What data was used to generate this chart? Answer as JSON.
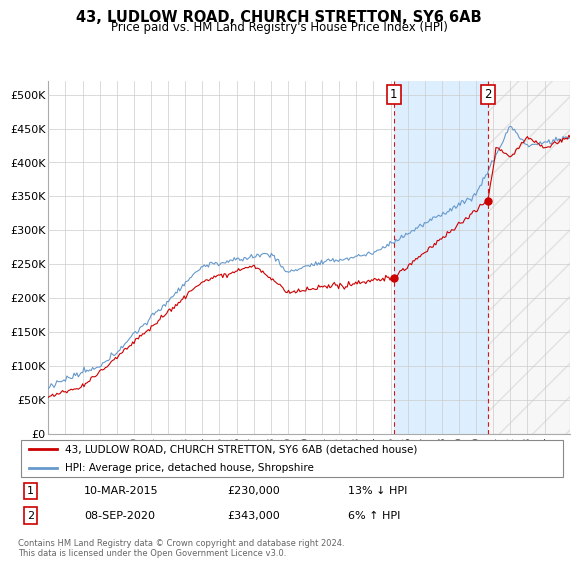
{
  "title": "43, LUDLOW ROAD, CHURCH STRETTON, SY6 6AB",
  "subtitle": "Price paid vs. HM Land Registry's House Price Index (HPI)",
  "ylabel_ticks": [
    "£0",
    "£50K",
    "£100K",
    "£150K",
    "£200K",
    "£250K",
    "£300K",
    "£350K",
    "£400K",
    "£450K",
    "£500K"
  ],
  "ytick_vals": [
    0,
    50000,
    100000,
    150000,
    200000,
    250000,
    300000,
    350000,
    400000,
    450000,
    500000
  ],
  "ylim": [
    0,
    520000
  ],
  "xlim_start": 1995.0,
  "xlim_end": 2025.5,
  "legend_line1": "43, LUDLOW ROAD, CHURCH STRETTON, SY6 6AB (detached house)",
  "legend_line2": "HPI: Average price, detached house, Shropshire",
  "transaction1_date": "10-MAR-2015",
  "transaction1_price": "£230,000",
  "transaction1_hpi": "13% ↓ HPI",
  "transaction1_x": 2015.19,
  "transaction1_y": 230000,
  "transaction2_date": "08-SEP-2020",
  "transaction2_price": "£343,000",
  "transaction2_hpi": "6% ↑ HPI",
  "transaction2_x": 2020.69,
  "transaction2_y": 343000,
  "vline1_x": 2015.19,
  "vline2_x": 2020.69,
  "red_color": "#cc0000",
  "blue_color": "#6699cc",
  "shade_color": "#ddeeff",
  "hatch_color": "#cccccc",
  "background_color": "#ffffff",
  "grid_color": "#cccccc",
  "footer": "Contains HM Land Registry data © Crown copyright and database right 2024.\nThis data is licensed under the Open Government Licence v3.0."
}
